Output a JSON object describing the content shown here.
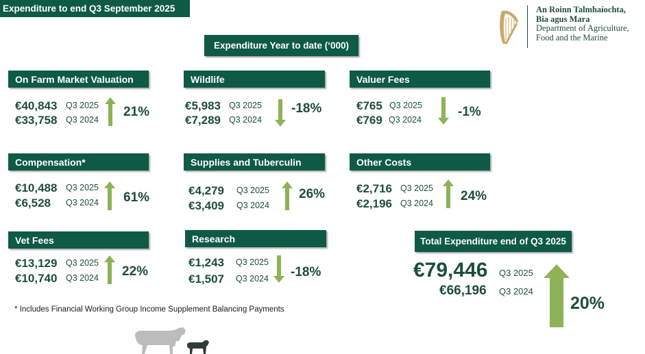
{
  "header": {
    "banner": "Expenditure to end Q3 September  2025",
    "subtitle": "Expenditure Year to date (‘000)"
  },
  "logo": {
    "line1": "An Roinn Talmhaíochta,",
    "line2": "Bia agus Mara",
    "line3": "Department of Agriculture,",
    "line4": "Food and the Marine"
  },
  "colors": {
    "dark_green": "#0e5a44",
    "arrow_green": "#8db356"
  },
  "cards": [
    {
      "title": "On Farm Market Valuation",
      "value_2025": "€40,843",
      "label_2025": "Q3 2025",
      "value_2024": "€33,758",
      "label_2024": "Q3 2024",
      "change": "21%",
      "direction": "up"
    },
    {
      "title": "Wildlife",
      "value_2025": "€5,983",
      "label_2025": "Q3 2025",
      "value_2024": "€7,289",
      "label_2024": "Q3 2024",
      "change": "-18%",
      "direction": "down"
    },
    {
      "title": "Valuer Fees",
      "value_2025": "€765",
      "label_2025": "Q3 2025",
      "value_2024": "€769",
      "label_2024": "Q3 2024",
      "change": "-1%",
      "direction": "down"
    },
    {
      "title": "Compensation*",
      "value_2025": "€10,488",
      "label_2025": "Q3 2025",
      "value_2024": "€6,528",
      "label_2024": "Q3 2024",
      "change": "61%",
      "direction": "up"
    },
    {
      "title": "Supplies and Tuberculin",
      "value_2025": "€4,279",
      "label_2025": "Q3 2025",
      "value_2024": "€3,409",
      "label_2024": "Q3 2024",
      "change": "26%",
      "direction": "up"
    },
    {
      "title": "Other Costs",
      "value_2025": "€2,716",
      "label_2025": "Q3 2025",
      "value_2024": "€2,196",
      "label_2024": "Q3 2024",
      "change": "24%",
      "direction": "up"
    },
    {
      "title": "Vet Fees",
      "value_2025": "€13,129",
      "label_2025": "Q3 2025",
      "value_2024": "€10,740",
      "label_2024": "Q3 2024",
      "change": "22%",
      "direction": "up"
    },
    {
      "title": "Research",
      "value_2025": "€1,243",
      "label_2025": "Q3 2025",
      "value_2024": "€1,507",
      "label_2024": "Q3 2024",
      "change": "-18%",
      "direction": "down"
    }
  ],
  "total": {
    "title": "Total Expenditure end of Q3 2025",
    "value_2025": "€79,446",
    "label_2025": "Q3 2025",
    "value_2024": "€66,196",
    "label_2024": "Q3 2024",
    "change": "20%",
    "direction": "up"
  },
  "footnote": "* Includes Financial Working Group Income Supplement Balancing Payments"
}
